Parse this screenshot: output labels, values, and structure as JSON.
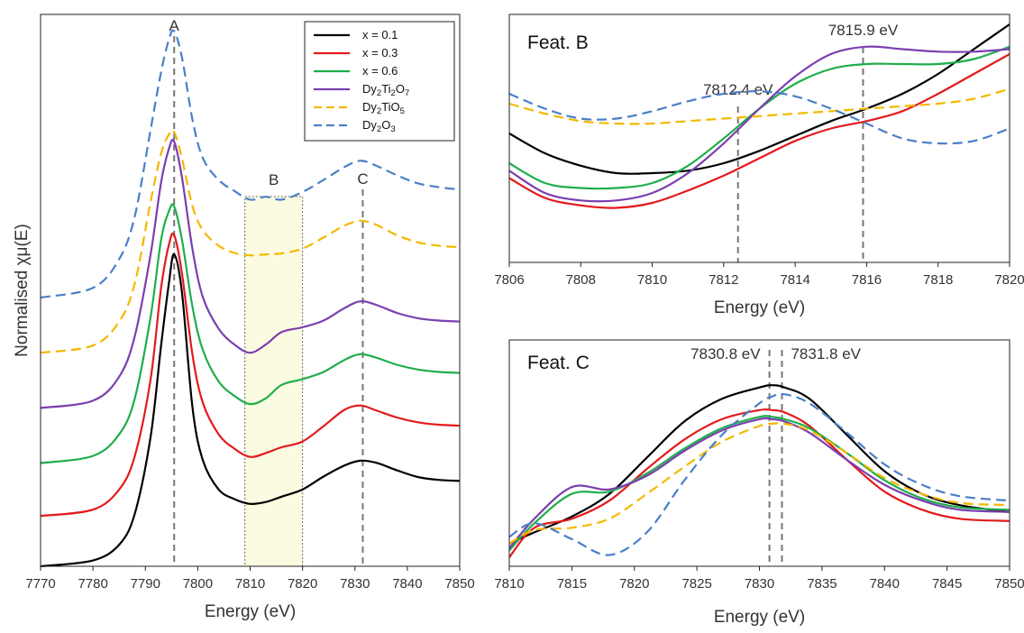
{
  "series_styles": [
    {
      "key": "x01",
      "name": "x = 0.1",
      "name_main": "x = 0.1",
      "color": "#000000",
      "dash": "solid"
    },
    {
      "key": "x03",
      "name": "x = 0.3",
      "name_main": "x = 0.3",
      "color": "#e31a1c",
      "dash": "solid"
    },
    {
      "key": "x06",
      "name": "x = 0.6",
      "name_main": "x = 0.6",
      "color": "#1fae4b",
      "dash": "solid"
    },
    {
      "key": "dti2",
      "name": "Dy₂Ti₂O₇",
      "name_main": "Dy",
      "sub1": "2",
      "mid1": "Ti",
      "sub2": "2",
      "mid2": "O",
      "sub3": "7",
      "color": "#7b3fb0",
      "dash": "solid"
    },
    {
      "key": "dtio5",
      "name": "Dy₂TiO₅",
      "name_main": "Dy",
      "sub1": "2",
      "mid1": "TiO",
      "sub2": "5",
      "mid2": "",
      "sub3": "",
      "color": "#f5b800",
      "dash": "dashed"
    },
    {
      "key": "d2o3",
      "name": "Dy₂O₃",
      "name_main": "Dy",
      "sub1": "2",
      "mid1": "O",
      "sub2": "3",
      "mid2": "",
      "sub3": "",
      "color": "#4a7fc8",
      "dash": "dashed"
    }
  ],
  "chart_data": [
    {
      "type": "line",
      "panel": "main",
      "xlabel": "Energy (eV)",
      "ylabel": "Normalised χμ(E)",
      "xlim": [
        7770,
        7850
      ],
      "ylim": [
        0,
        11.5
      ],
      "xticks": [
        7770,
        7780,
        7790,
        7800,
        7810,
        7820,
        7830,
        7840,
        7850
      ],
      "yticks_shown": false,
      "legend_position": "top-right",
      "annotations": [
        {
          "label": "A",
          "x": 7795.5
        },
        {
          "label": "B",
          "x_range": [
            7809,
            7820
          ]
        },
        {
          "label": "C",
          "x": 7831.5
        }
      ],
      "series": [
        {
          "key": "x01",
          "name": "x = 0.1",
          "x": [
            7770,
            7780,
            7785,
            7788,
            7791,
            7793,
            7794.5,
            7795.5,
            7797,
            7799,
            7801,
            7804,
            7807,
            7810,
            7813,
            7816,
            7820,
            7824,
            7828,
            7831,
            7834,
            7838,
            7842,
            7846,
            7850
          ],
          "y": [
            0,
            0.12,
            0.45,
            1.1,
            2.7,
            4.6,
            5.9,
            6.5,
            5.7,
            3.3,
            2.2,
            1.6,
            1.4,
            1.3,
            1.34,
            1.45,
            1.6,
            1.87,
            2.1,
            2.2,
            2.16,
            2.0,
            1.86,
            1.8,
            1.78
          ]
        },
        {
          "key": "x03",
          "name": "x = 0.3",
          "x": [
            7770,
            7780,
            7785,
            7788,
            7791,
            7793,
            7794.5,
            7795.5,
            7797,
            7799,
            7801,
            7804,
            7807,
            7810,
            7813,
            7816,
            7820,
            7824,
            7828,
            7831,
            7834,
            7838,
            7842,
            7846,
            7850
          ],
          "y": [
            1.05,
            1.18,
            1.6,
            2.3,
            3.9,
            5.8,
            6.7,
            6.9,
            6.1,
            4.4,
            3.4,
            2.75,
            2.45,
            2.28,
            2.36,
            2.48,
            2.6,
            2.92,
            3.26,
            3.35,
            3.25,
            3.1,
            3.0,
            2.95,
            2.93
          ]
        },
        {
          "key": "x06",
          "name": "x = 0.6",
          "x": [
            7770,
            7780,
            7785,
            7788,
            7791,
            7793,
            7794.5,
            7795.5,
            7797,
            7799,
            7801,
            7804,
            7807,
            7810,
            7813,
            7816,
            7820,
            7824,
            7828,
            7831,
            7834,
            7838,
            7842,
            7846,
            7850
          ],
          "y": [
            2.15,
            2.3,
            2.75,
            3.5,
            5.2,
            6.8,
            7.4,
            7.5,
            6.8,
            5.4,
            4.5,
            3.85,
            3.55,
            3.38,
            3.5,
            3.78,
            3.9,
            4.05,
            4.3,
            4.42,
            4.35,
            4.2,
            4.1,
            4.05,
            4.03
          ]
        },
        {
          "key": "dti2",
          "name": "Dy₂Ti₂O₇",
          "x": [
            7770,
            7780,
            7785,
            7788,
            7791,
            7793,
            7794.5,
            7795.5,
            7797,
            7799,
            7801,
            7804,
            7807,
            7810,
            7813,
            7816,
            7820,
            7824,
            7828,
            7831,
            7834,
            7838,
            7842,
            7846,
            7850
          ],
          "y": [
            3.3,
            3.45,
            3.95,
            4.8,
            6.5,
            8.0,
            8.7,
            8.85,
            8.1,
            6.6,
            5.6,
            4.95,
            4.62,
            4.45,
            4.62,
            4.88,
            4.98,
            5.12,
            5.38,
            5.52,
            5.45,
            5.28,
            5.17,
            5.12,
            5.1
          ]
        },
        {
          "key": "dtio5",
          "name": "Dy₂TiO₅",
          "x": [
            7770,
            7780,
            7785,
            7788,
            7791,
            7793,
            7794.5,
            7795.5,
            7797,
            7799,
            7801,
            7804,
            7807,
            7810,
            7813,
            7816,
            7820,
            7824,
            7828,
            7831,
            7834,
            7838,
            7842,
            7846,
            7850
          ],
          "y": [
            4.45,
            4.6,
            5.1,
            5.9,
            7.6,
            8.6,
            9.0,
            9.05,
            8.5,
            7.5,
            7.0,
            6.68,
            6.53,
            6.48,
            6.5,
            6.52,
            6.62,
            6.85,
            7.1,
            7.2,
            7.12,
            6.9,
            6.75,
            6.68,
            6.65
          ]
        },
        {
          "key": "d2o3",
          "name": "Dy₂O₃",
          "x": [
            7770,
            7780,
            7785,
            7788,
            7791,
            7793,
            7794.5,
            7795.5,
            7797,
            7799,
            7801,
            7804,
            7807,
            7810,
            7813,
            7816,
            7820,
            7824,
            7828,
            7831,
            7834,
            7838,
            7842,
            7846,
            7850
          ],
          "y": [
            5.6,
            5.8,
            6.4,
            7.3,
            9.1,
            10.3,
            10.98,
            11.15,
            10.6,
            9.3,
            8.5,
            8.05,
            7.82,
            7.64,
            7.7,
            7.64,
            7.8,
            8.05,
            8.32,
            8.45,
            8.35,
            8.15,
            7.98,
            7.9,
            7.85
          ]
        }
      ]
    },
    {
      "type": "line",
      "panel": "feat-b",
      "title": "Feat. B",
      "xlabel": "Energy (eV)",
      "xlim": [
        7806,
        7820
      ],
      "ylim": [
        0,
        1
      ],
      "xticks": [
        7806,
        7808,
        7810,
        7812,
        7814,
        7816,
        7818,
        7820
      ],
      "yticks_shown": false,
      "markers": [
        {
          "label": "7812.4 eV",
          "x": 7812.4
        },
        {
          "label": "7815.9 eV",
          "x": 7815.9
        }
      ],
      "series": [
        {
          "key": "x01",
          "x": [
            7806,
            7807,
            7808,
            7809,
            7810,
            7811,
            7812,
            7813,
            7814,
            7815,
            7816,
            7817,
            7818,
            7819,
            7820
          ],
          "y": [
            0.52,
            0.44,
            0.39,
            0.36,
            0.36,
            0.37,
            0.4,
            0.45,
            0.51,
            0.57,
            0.62,
            0.68,
            0.76,
            0.86,
            0.96
          ]
        },
        {
          "key": "x03",
          "x": [
            7806,
            7807,
            7808,
            7809,
            7810,
            7811,
            7812,
            7813,
            7814,
            7815,
            7816,
            7817,
            7818,
            7819,
            7820
          ],
          "y": [
            0.34,
            0.26,
            0.23,
            0.22,
            0.24,
            0.29,
            0.35,
            0.42,
            0.49,
            0.54,
            0.57,
            0.61,
            0.68,
            0.76,
            0.84
          ]
        },
        {
          "key": "x06",
          "x": [
            7806,
            7807,
            7808,
            7809,
            7810,
            7811,
            7812,
            7813,
            7814,
            7815,
            7816,
            7817,
            7818,
            7819,
            7820
          ],
          "y": [
            0.4,
            0.32,
            0.3,
            0.3,
            0.32,
            0.39,
            0.5,
            0.62,
            0.72,
            0.78,
            0.8,
            0.8,
            0.8,
            0.82,
            0.87
          ]
        },
        {
          "key": "dti2",
          "x": [
            7806,
            7807,
            7808,
            7809,
            7810,
            7811,
            7812,
            7813,
            7814,
            7815,
            7816,
            7817,
            7818,
            7819,
            7820
          ],
          "y": [
            0.37,
            0.28,
            0.25,
            0.25,
            0.28,
            0.36,
            0.48,
            0.62,
            0.75,
            0.84,
            0.87,
            0.86,
            0.85,
            0.85,
            0.86
          ]
        },
        {
          "key": "dtio5",
          "x": [
            7806,
            7807,
            7808,
            7809,
            7810,
            7811,
            7812,
            7813,
            7814,
            7815,
            7816,
            7817,
            7818,
            7819,
            7820
          ],
          "y": [
            0.64,
            0.6,
            0.57,
            0.56,
            0.56,
            0.57,
            0.58,
            0.59,
            0.6,
            0.61,
            0.62,
            0.63,
            0.64,
            0.66,
            0.7
          ]
        },
        {
          "key": "d2o3",
          "x": [
            7806,
            7807,
            7808,
            7809,
            7810,
            7811,
            7812,
            7813,
            7814,
            7815,
            7816,
            7817,
            7818,
            7819,
            7820
          ],
          "y": [
            0.68,
            0.62,
            0.58,
            0.58,
            0.61,
            0.65,
            0.68,
            0.69,
            0.67,
            0.62,
            0.56,
            0.5,
            0.48,
            0.49,
            0.54
          ]
        }
      ]
    },
    {
      "type": "line",
      "panel": "feat-c",
      "title": "Feat. C",
      "xlabel": "Energy (eV)",
      "xlim": [
        7810,
        7850
      ],
      "ylim": [
        0,
        1
      ],
      "xticks": [
        7810,
        7815,
        7820,
        7825,
        7830,
        7835,
        7840,
        7845,
        7850
      ],
      "yticks_shown": false,
      "markers": [
        {
          "label": "7830.8 eV",
          "x": 7830.8
        },
        {
          "label": "7831.8 eV",
          "x": 7831.8
        }
      ],
      "series": [
        {
          "key": "x01",
          "x": [
            7810,
            7812,
            7815,
            7818,
            7821,
            7824,
            7827,
            7830,
            7831,
            7832,
            7834,
            7837,
            7840,
            7843,
            7846,
            7850
          ],
          "y": [
            0.1,
            0.15,
            0.22,
            0.32,
            0.48,
            0.64,
            0.74,
            0.79,
            0.8,
            0.79,
            0.74,
            0.58,
            0.42,
            0.32,
            0.27,
            0.24
          ]
        },
        {
          "key": "x03",
          "x": [
            7810,
            7812,
            7815,
            7818,
            7821,
            7824,
            7827,
            7830,
            7831,
            7832,
            7834,
            7837,
            7840,
            7843,
            7846,
            7850
          ],
          "y": [
            0.04,
            0.17,
            0.21,
            0.29,
            0.43,
            0.56,
            0.65,
            0.69,
            0.69,
            0.68,
            0.62,
            0.47,
            0.33,
            0.25,
            0.21,
            0.2
          ]
        },
        {
          "key": "x06",
          "x": [
            7810,
            7812,
            7815,
            7818,
            7821,
            7824,
            7827,
            7830,
            7831,
            7832,
            7834,
            7837,
            7840,
            7843,
            7846,
            7850
          ],
          "y": [
            0.07,
            0.19,
            0.32,
            0.33,
            0.41,
            0.52,
            0.61,
            0.66,
            0.66,
            0.65,
            0.61,
            0.5,
            0.38,
            0.3,
            0.26,
            0.25
          ]
        },
        {
          "key": "dti2",
          "x": [
            7810,
            7812,
            7815,
            7818,
            7821,
            7824,
            7827,
            7830,
            7831,
            7832,
            7834,
            7837,
            7840,
            7843,
            7846,
            7850
          ],
          "y": [
            0.08,
            0.21,
            0.35,
            0.34,
            0.4,
            0.51,
            0.6,
            0.65,
            0.65,
            0.64,
            0.59,
            0.47,
            0.36,
            0.29,
            0.25,
            0.24
          ]
        },
        {
          "key": "dtio5",
          "x": [
            7810,
            7812,
            7815,
            7818,
            7821,
            7824,
            7827,
            7830,
            7831,
            7832,
            7834,
            7837,
            7840,
            7843,
            7846,
            7850
          ],
          "y": [
            0.1,
            0.16,
            0.17,
            0.21,
            0.32,
            0.44,
            0.55,
            0.62,
            0.63,
            0.63,
            0.6,
            0.5,
            0.39,
            0.32,
            0.28,
            0.27
          ]
        },
        {
          "key": "d2o3",
          "x": [
            7810,
            7812,
            7815,
            7818,
            7821,
            7824,
            7827,
            7830,
            7831,
            7832,
            7834,
            7837,
            7840,
            7843,
            7846,
            7850
          ],
          "y": [
            0.13,
            0.19,
            0.12,
            0.05,
            0.15,
            0.38,
            0.58,
            0.72,
            0.75,
            0.76,
            0.72,
            0.59,
            0.45,
            0.36,
            0.31,
            0.29
          ]
        }
      ]
    }
  ]
}
